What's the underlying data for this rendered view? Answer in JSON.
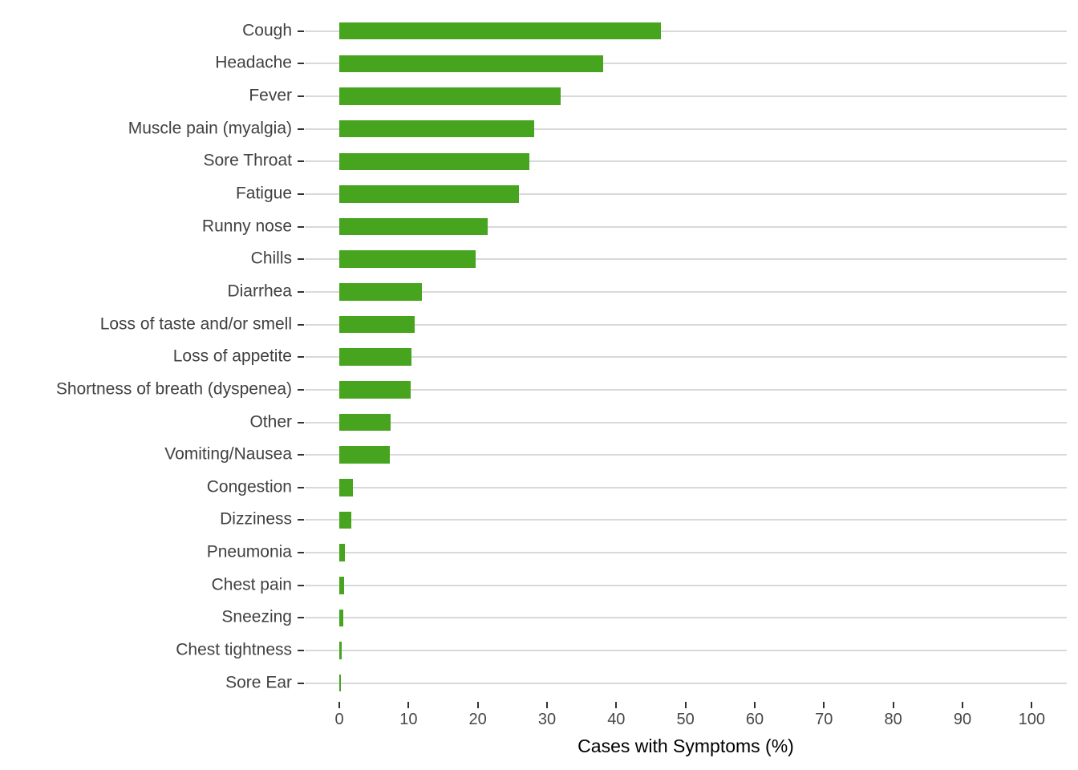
{
  "chart_data": {
    "type": "bar",
    "orientation": "horizontal",
    "title": "",
    "xlabel": "Cases with Symptoms (%)",
    "ylabel": "",
    "categories": [
      "Cough",
      "Headache",
      "Fever",
      "Muscle pain (myalgia)",
      "Sore Throat",
      "Fatigue",
      "Runny nose",
      "Chills",
      "Diarrhea",
      "Loss of taste and/or smell",
      "Loss of appetite",
      "Shortness of breath (dyspenea)",
      "Other",
      "Vomiting/Nausea",
      "Congestion",
      "Dizziness",
      "Pneumonia",
      "Chest pain",
      "Sneezing",
      "Chest tightness",
      "Sore Ear"
    ],
    "values": [
      46.4,
      38.1,
      32.0,
      28.2,
      27.5,
      26.0,
      21.4,
      19.7,
      11.9,
      10.9,
      10.4,
      10.3,
      7.4,
      7.3,
      2.0,
      1.7,
      0.8,
      0.7,
      0.6,
      0.3,
      0.2
    ],
    "xlim": [
      0,
      100
    ],
    "xticks": [
      0,
      10,
      20,
      30,
      40,
      50,
      60,
      70,
      80,
      90,
      100
    ],
    "grid": "horizontal-major-only",
    "legend": "none",
    "colors": {
      "bar": "#46a41e",
      "gridline": "#d9d9d9",
      "tick_mark": "#333333",
      "axis_text": "#474747",
      "category_text": "#414141",
      "axis_title": "#000000",
      "background": "#ffffff"
    }
  }
}
